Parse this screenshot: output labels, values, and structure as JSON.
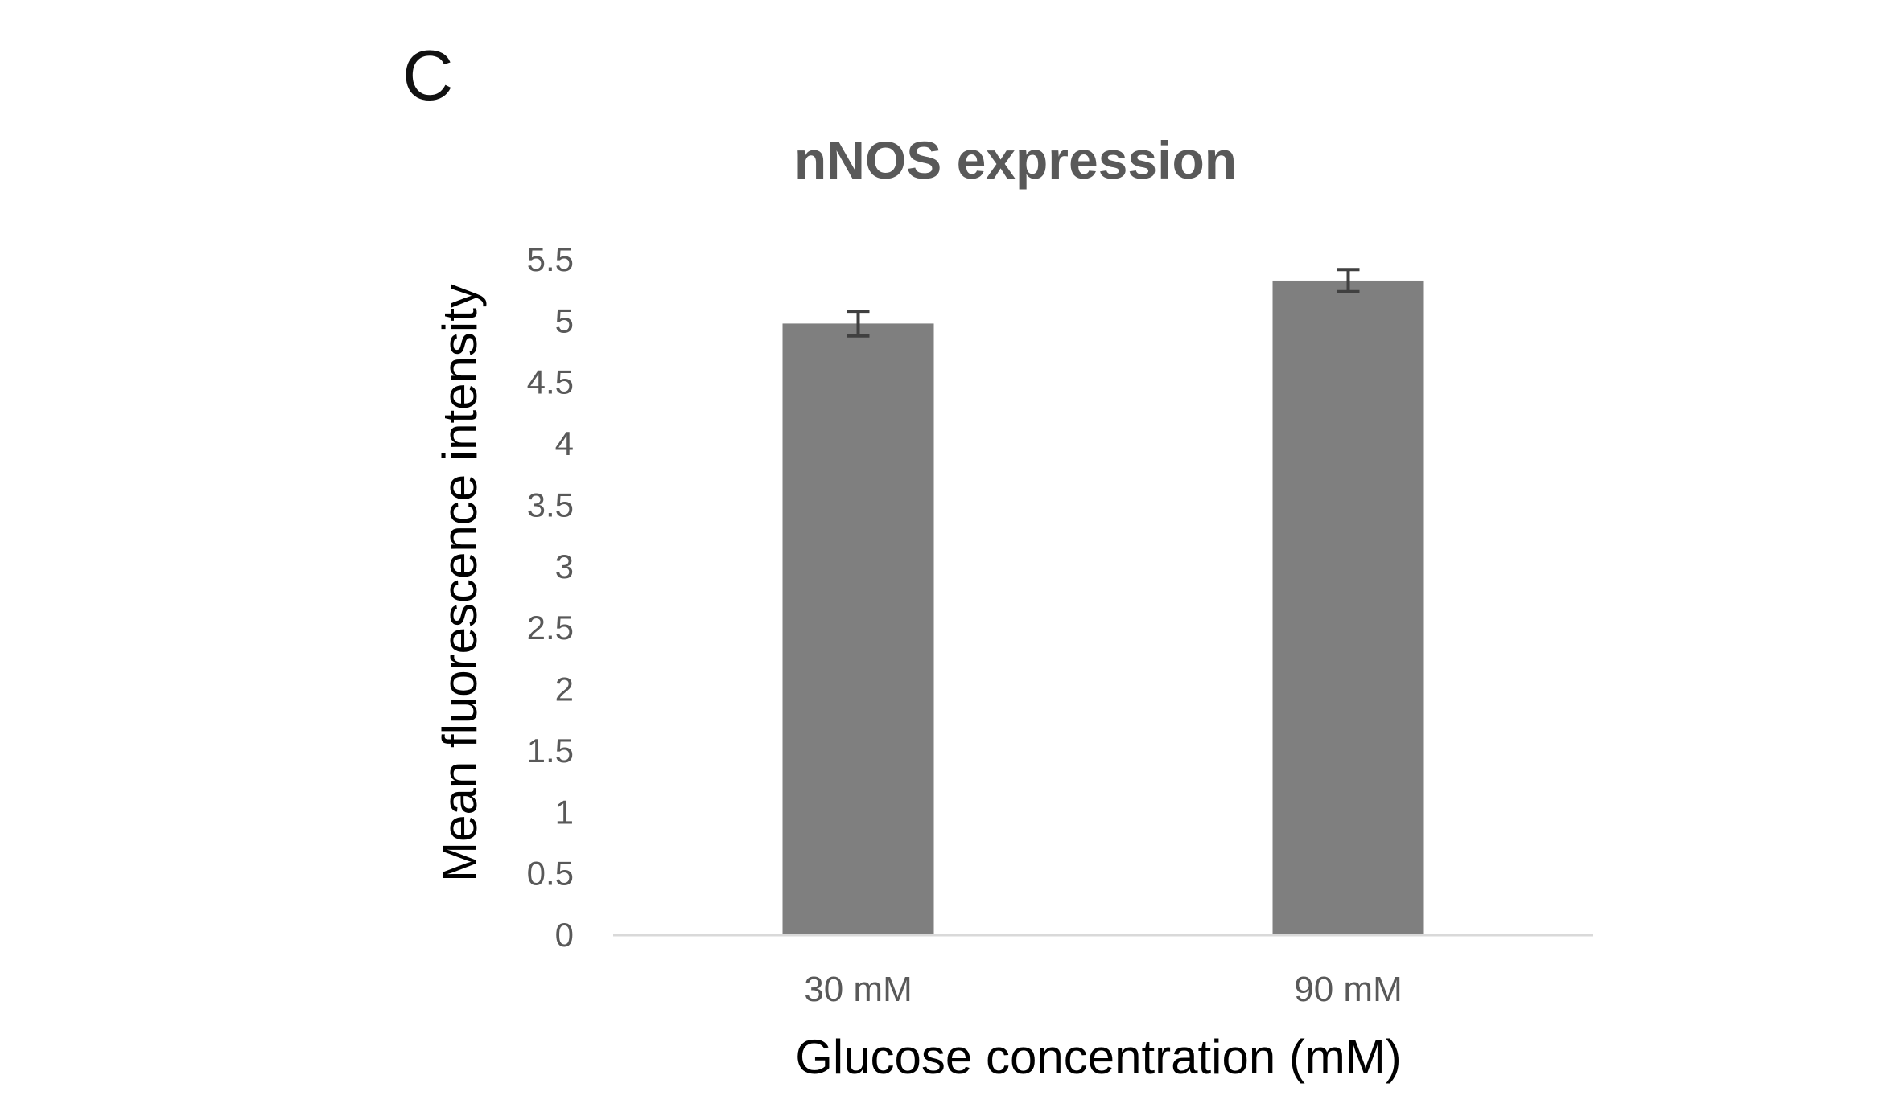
{
  "panel_label": "C",
  "chart_data": {
    "type": "bar",
    "title": "nNOS expression",
    "xlabel": "Glucose concentration (mM)",
    "ylabel": "Mean fluorescence intensity",
    "categories": [
      "30 mM",
      "90 mM"
    ],
    "values": [
      4.98,
      5.33
    ],
    "error": [
      0.1,
      0.09
    ],
    "ylim": [
      0,
      5.5
    ],
    "yticks": [
      "0",
      "0.5",
      "1",
      "1.5",
      "2",
      "2.5",
      "3",
      "3.5",
      "4",
      "4.5",
      "5",
      "5.5"
    ],
    "grid": false,
    "legend": "none",
    "colors": {
      "bar": "#7f7f7f",
      "errorbar": "#404040",
      "axis": "#d9d9d9",
      "tick_label": "#595959",
      "title": "#595959",
      "axis_label": "#000000"
    }
  }
}
